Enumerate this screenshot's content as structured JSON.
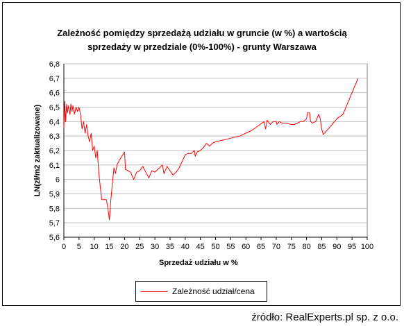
{
  "chart_data": {
    "type": "line",
    "title_line1": "Zależność pomiędzy sprzedażą udziału w gruncie (w %) a wartością",
    "title_line2": "sprzedaży w przedziale (0%-100%) - grunty Warszawa",
    "xlabel": "Sprzedaż udziału  w %",
    "ylabel": "LN(zł/m2 zaktualizowane)",
    "xlim": [
      0,
      100
    ],
    "ylim": [
      5.6,
      6.8
    ],
    "x_ticks": [
      0,
      5,
      10,
      15,
      20,
      25,
      30,
      35,
      40,
      45,
      50,
      55,
      60,
      65,
      70,
      75,
      80,
      85,
      90,
      95,
      100
    ],
    "y_ticks": [
      "5,6",
      "5,7",
      "5,8",
      "5,9",
      "6",
      "6,1",
      "6,2",
      "6,3",
      "6,4",
      "6,5",
      "6,6",
      "6,7",
      "6,8"
    ],
    "grid": true,
    "legend_position": "bottom",
    "series": [
      {
        "name": "Zależność udział/cena",
        "color": "#ff0000",
        "points": [
          [
            0.0,
            6.36
          ],
          [
            0.3,
            6.54
          ],
          [
            0.6,
            6.4
          ],
          [
            0.9,
            6.52
          ],
          [
            1.2,
            6.46
          ],
          [
            1.5,
            6.51
          ],
          [
            2.0,
            6.45
          ],
          [
            2.3,
            6.52
          ],
          [
            2.7,
            6.47
          ],
          [
            3.0,
            6.51
          ],
          [
            3.5,
            6.45
          ],
          [
            4.0,
            6.5
          ],
          [
            4.5,
            6.47
          ],
          [
            5.0,
            6.5
          ],
          [
            5.5,
            6.45
          ],
          [
            6.0,
            6.35
          ],
          [
            6.5,
            6.4
          ],
          [
            7.0,
            6.32
          ],
          [
            7.5,
            6.38
          ],
          [
            8.0,
            6.3
          ],
          [
            8.5,
            6.26
          ],
          [
            9.0,
            6.32
          ],
          [
            9.5,
            6.2
          ],
          [
            10.0,
            6.23
          ],
          [
            10.5,
            6.15
          ],
          [
            11.0,
            6.2
          ],
          [
            11.5,
            6.05
          ],
          [
            12.0,
            5.95
          ],
          [
            12.5,
            5.86
          ],
          [
            13.0,
            5.86
          ],
          [
            14.0,
            5.86
          ],
          [
            14.5,
            5.8
          ],
          [
            15.0,
            5.72
          ],
          [
            15.5,
            5.86
          ],
          [
            16.0,
            5.97
          ],
          [
            16.5,
            6.08
          ],
          [
            17.0,
            6.04
          ],
          [
            17.5,
            6.1
          ],
          [
            18.5,
            6.14
          ],
          [
            20.0,
            6.19
          ],
          [
            20.3,
            6.07
          ],
          [
            22.0,
            6.05
          ],
          [
            23.0,
            6.0
          ],
          [
            24.0,
            6.05
          ],
          [
            25.0,
            6.06
          ],
          [
            26.0,
            6.09
          ],
          [
            27.0,
            6.05
          ],
          [
            28.0,
            6.01
          ],
          [
            29.0,
            6.06
          ],
          [
            30.0,
            6.05
          ],
          [
            31.0,
            6.07
          ],
          [
            32.5,
            6.1
          ],
          [
            33.0,
            6.04
          ],
          [
            34.0,
            6.09
          ],
          [
            35.0,
            6.06
          ],
          [
            36.0,
            6.03
          ],
          [
            37.0,
            6.05
          ],
          [
            38.0,
            6.08
          ],
          [
            40.0,
            6.17
          ],
          [
            41.0,
            6.18
          ],
          [
            42.0,
            6.18
          ],
          [
            43.0,
            6.2
          ],
          [
            43.3,
            6.16
          ],
          [
            44.0,
            6.19
          ],
          [
            45.0,
            6.2
          ],
          [
            46.0,
            6.22
          ],
          [
            47.0,
            6.25
          ],
          [
            48.0,
            6.23
          ],
          [
            49.0,
            6.25
          ],
          [
            50.0,
            6.26
          ],
          [
            52.0,
            6.27
          ],
          [
            54.0,
            6.28
          ],
          [
            56.0,
            6.29
          ],
          [
            58.0,
            6.3
          ],
          [
            60.0,
            6.32
          ],
          [
            62.0,
            6.34
          ],
          [
            64.0,
            6.37
          ],
          [
            66.0,
            6.4
          ],
          [
            66.5,
            6.35
          ],
          [
            67.0,
            6.41
          ],
          [
            68.0,
            6.38
          ],
          [
            69.0,
            6.4
          ],
          [
            70.0,
            6.4
          ],
          [
            70.3,
            6.38
          ],
          [
            71.0,
            6.4
          ],
          [
            72.0,
            6.39
          ],
          [
            73.0,
            6.39
          ],
          [
            75.0,
            6.38
          ],
          [
            76.0,
            6.38
          ],
          [
            78.0,
            6.4
          ],
          [
            79.0,
            6.4
          ],
          [
            80.0,
            6.42
          ],
          [
            80.3,
            6.46
          ],
          [
            81.0,
            6.46
          ],
          [
            81.3,
            6.4
          ],
          [
            82.0,
            6.39
          ],
          [
            83.0,
            6.4
          ],
          [
            84.0,
            6.45
          ],
          [
            84.5,
            6.42
          ],
          [
            85.0,
            6.35
          ],
          [
            85.5,
            6.31
          ],
          [
            88.0,
            6.37
          ],
          [
            90.0,
            6.42
          ],
          [
            92.0,
            6.45
          ],
          [
            97.0,
            6.7
          ]
        ]
      }
    ]
  },
  "legend": {
    "label": "Zależność udział/cena"
  },
  "source": "źródło: RealExperts.pl sp. z o.o."
}
